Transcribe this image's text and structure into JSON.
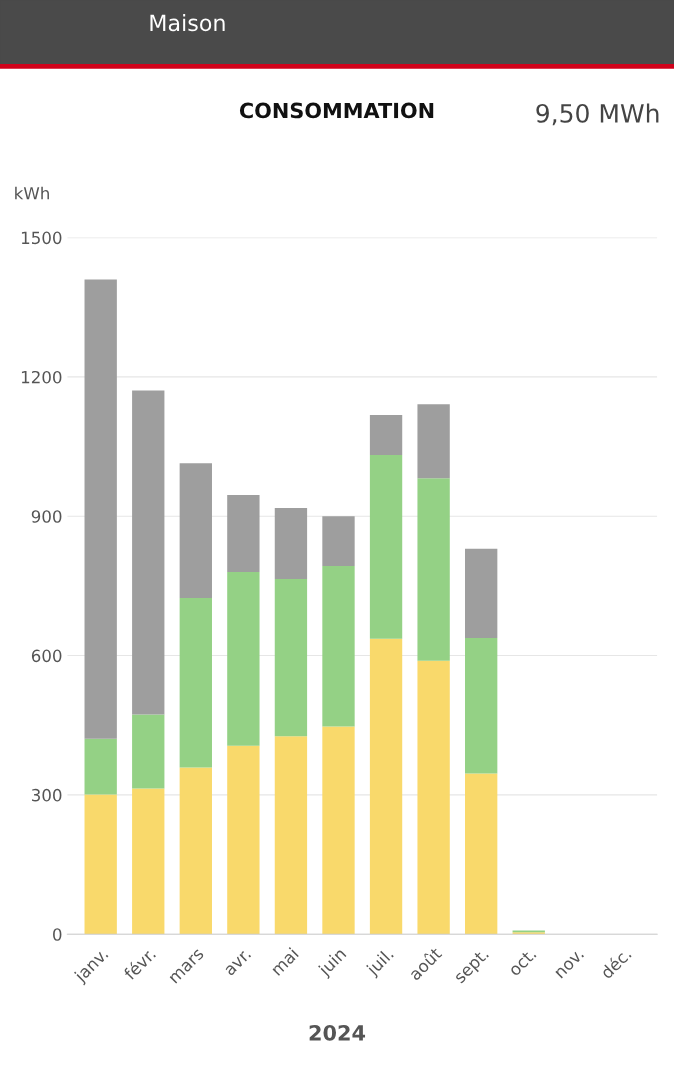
{
  "chart_data": {
    "type": "bar",
    "title": "CONSOMMATION",
    "ylabel": "kWh",
    "annotations": [
      "Maison",
      "9,50 MWh",
      "2024"
    ],
    "categories": [
      "janv.",
      "févr.",
      "mars",
      "avr.",
      "mai",
      "juin",
      "juil.",
      "août",
      "sept.",
      "oct.",
      "nov.",
      "déc."
    ],
    "stacked": true,
    "series": [
      {
        "color": "#f9d96b",
        "values": [
          301,
          314,
          359,
          406,
          426,
          447,
          636,
          589,
          346,
          4,
          0,
          0
        ]
      },
      {
        "color": "#94d185",
        "values": [
          120,
          159,
          365,
          374,
          339,
          346,
          396,
          393,
          292,
          4,
          0,
          0
        ]
      },
      {
        "color": "#9e9e9e",
        "values": [
          989,
          698,
          290,
          166,
          153,
          107,
          86,
          159,
          192,
          0,
          0,
          0
        ]
      }
    ],
    "ylim": [
      0,
      1500
    ],
    "yticks": [
      0,
      300,
      600,
      900,
      1200,
      1500
    ],
    "grid": "y"
  }
}
